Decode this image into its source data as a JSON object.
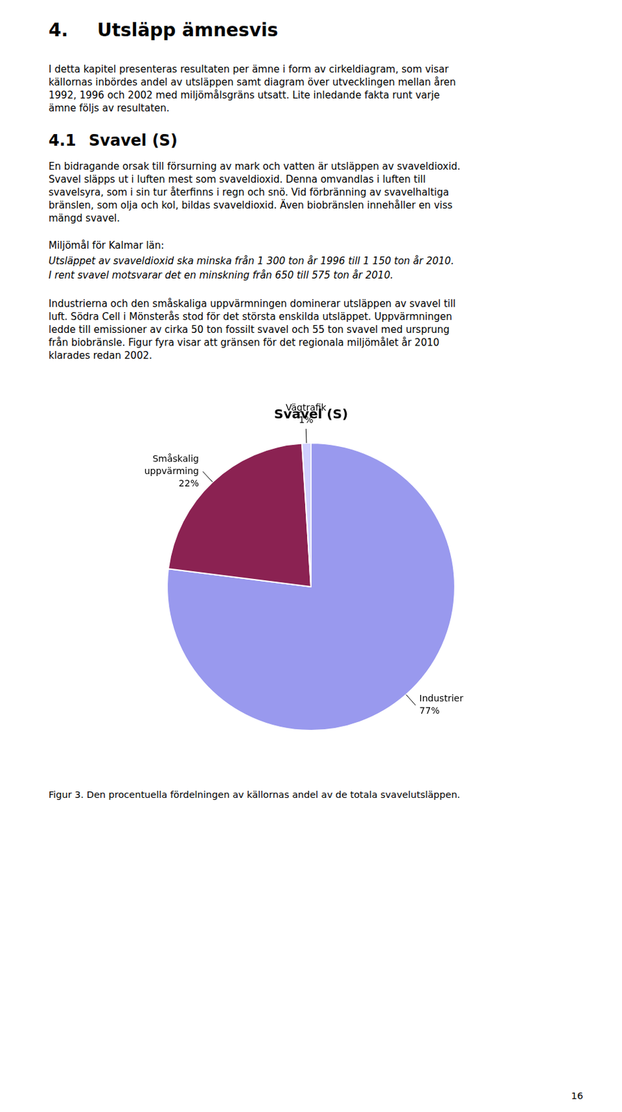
{
  "chart_data": {
    "type": "pie",
    "title": "Svavel (S)",
    "categories": [
      "Industrier",
      "Småskalig\nuppvärming",
      "Vägtrafik"
    ],
    "values": [
      77,
      22,
      1
    ],
    "value_labels": [
      "77%",
      "22%",
      "1%"
    ],
    "colors": [
      "#9999ee",
      "#8b2252",
      "#d0d0ff"
    ],
    "data_labels": true,
    "legend": false,
    "annotations": [
      "4.",
      "Utsläpp ämnesvis",
      "I detta kapitel presenteras resultaten per ämne i form av cirkeldiagram, som visar\nkällornas inbördes andel av utsläppen samt diagram över utvecklingen mellan åren\n1992, 1996 och 2002 med miljömålsgräns utsatt. Lite inledande fakta runt varje\nämne följs av resultaten.",
      "4.1",
      "Svavel (S)",
      "En bidragande orsak till försurning av mark och vatten är utsläppen av svaveldioxid.\nSvavel släpps ut i luften mest som svaveldioxid. Denna omvandlas i luften till\nsvavelsyra, som i sin tur återfinns i regn och snö. Vid förbränning av svavelhaltiga\nbränslen, som olja och kol, bildas svaveldioxid. Även biobränslen innehåller en viss\nmängd svavel.",
      "Miljömål för Kalmar län:",
      "Utsläppet av svaveldioxid ska minska från 1 300 ton år 1996 till 1 150 ton år 2010.",
      "I rent svavel motsvarar det en minskning från 650 till 575 ton år 2010.",
      "Industrierna och den småskaliga uppvärmningen dominerar utsläppen av svavel till\nluft. Södra Cell i Mönsterås stod för det största enskilda utsläppet. Uppvärmningen\nledde till emissioner av cirka 50 ton fossilt svavel och 55 ton svavel med ursprung\nfrån biobränsle. Figur fyra visar att gränsen för det regionala miljömålet år 2010\nklarades redan 2002.",
      "Figur 3. Den procentuella fördelningen av källornas andel av de totala svavelutsläppen.",
      "16"
    ]
  }
}
